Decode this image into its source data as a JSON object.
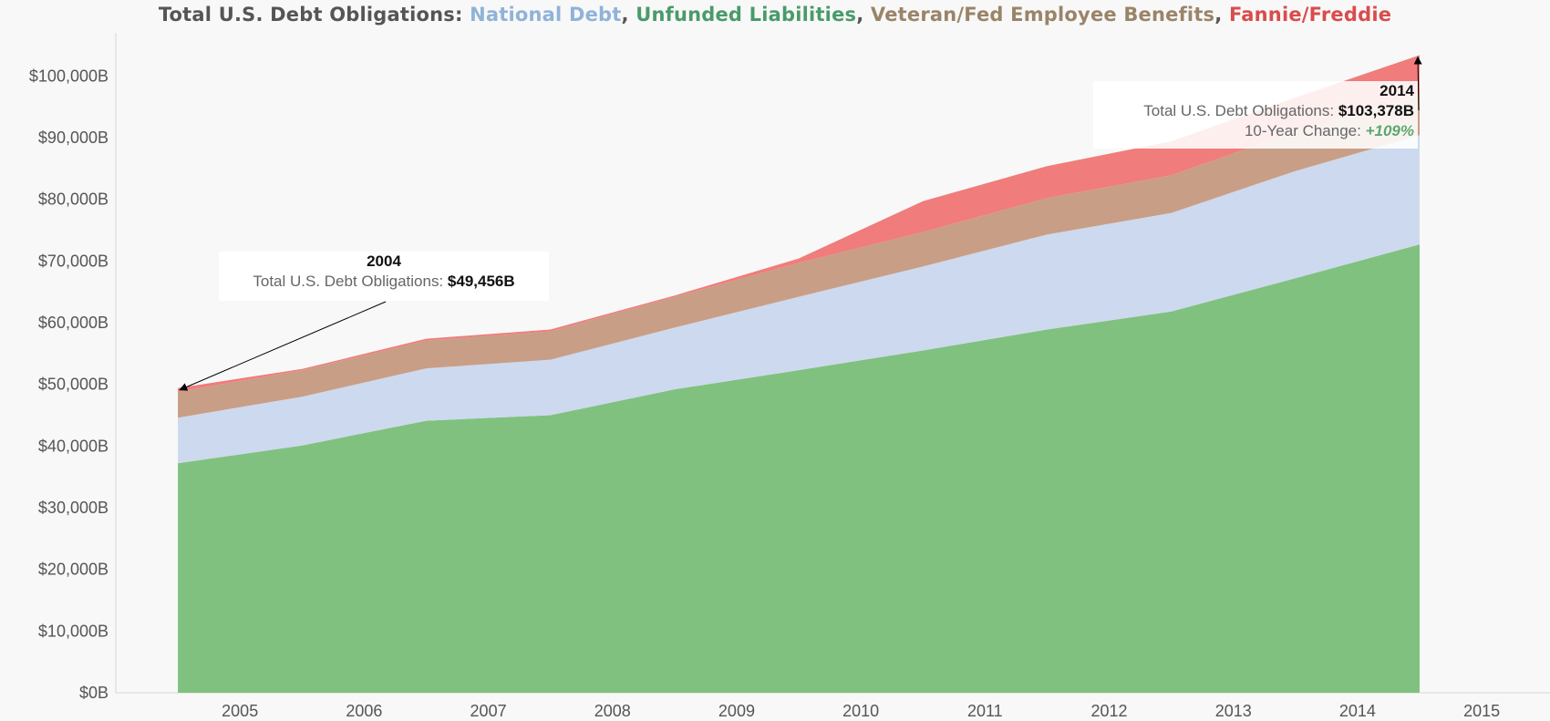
{
  "chart_data": {
    "type": "area",
    "stacked": true,
    "title_parts": [
      {
        "text": "Total U.S. Debt Obligations: ",
        "color": "#555555"
      },
      {
        "text": "National Debt",
        "color": "#8fb3d9"
      },
      {
        "text": ", ",
        "color": "#555555"
      },
      {
        "text": "Unfunded Liabilities",
        "color": "#4a9a6a"
      },
      {
        "text": ", ",
        "color": "#555555"
      },
      {
        "text": "Veteran/Fed Employee Benefits",
        "color": "#9a8468"
      },
      {
        "text": ", ",
        "color": "#555555"
      },
      {
        "text": "Fannie/Freddie",
        "color": "#d94c4c"
      }
    ],
    "x_tick_labels": [
      "2005",
      "2006",
      "2007",
      "2008",
      "2009",
      "2010",
      "2011",
      "2012",
      "2013",
      "2014",
      "2015"
    ],
    "y_tick_labels": [
      "$0B",
      "$10,000B",
      "$20,000B",
      "$30,000B",
      "$40,000B",
      "$50,000B",
      "$60,000B",
      "$70,000B",
      "$80,000B",
      "$90,000B",
      "$100,000B"
    ],
    "y_ticks": [
      0,
      10000,
      20000,
      30000,
      40000,
      50000,
      60000,
      70000,
      80000,
      90000,
      100000
    ],
    "x": [
      2004,
      2005,
      2006,
      2007,
      2008,
      2009,
      2010,
      2011,
      2012,
      2013,
      2014
    ],
    "x_range": [
      2003.5,
      2015.05
    ],
    "ylim": [
      0,
      107000
    ],
    "series": [
      {
        "name": "Unfunded Liabilities",
        "color": "#80c17f",
        "values": [
          37200,
          40100,
          44100,
          45000,
          49200,
          52300,
          55500,
          58900,
          61800,
          67200,
          72700
        ]
      },
      {
        "name": "National Debt",
        "color": "#cdd9ee",
        "values": [
          7400,
          7900,
          8500,
          9000,
          10000,
          11900,
          13600,
          15400,
          16000,
          17400,
          17700
        ]
      },
      {
        "name": "Veteran/Fed Employee Benefits",
        "color": "#c99e86",
        "values": [
          4200,
          4300,
          4500,
          4600,
          5000,
          5500,
          5600,
          5900,
          6100,
          6400,
          6600
        ]
      },
      {
        "name": "Fannie/Freddie",
        "color": "#f07c7b",
        "values": [
          600,
          200,
          300,
          300,
          200,
          700,
          5000,
          5200,
          5500,
          5500,
          6378
        ]
      }
    ],
    "annotations": [
      {
        "year": "2004",
        "label": "Total U.S. Debt Obligations: ",
        "value": "$49,456B"
      },
      {
        "year": "2014",
        "label": "Total U.S. Debt Obligations: ",
        "value": "$103,378B",
        "change_label": "10-Year Change: ",
        "change_value": "+109%",
        "change_color": "#5aa870"
      }
    ]
  }
}
